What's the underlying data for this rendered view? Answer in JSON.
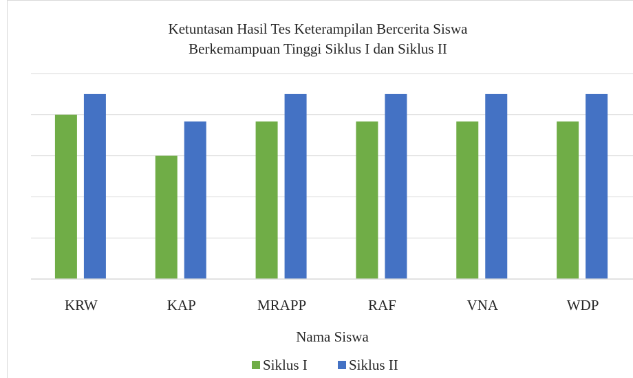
{
  "chart_data": {
    "type": "bar",
    "title": [
      "Ketuntasan  Hasil Tes Keterampilan  Bercerita  Siswa",
      "Berkemampuan  Tinggi Siklus I dan Siklus II"
    ],
    "x_label": "Nama Siswa",
    "categories": [
      "KRW",
      "KAP",
      "MRAPP",
      "RAF",
      "VNA",
      "WDP"
    ],
    "series": [
      {
        "name": "Siklus I",
        "color": "#70ad47",
        "values": [
          80,
          60,
          76.7,
          76.7,
          76.7,
          76.7
        ]
      },
      {
        "name": "Siklus II",
        "color": "#4472c4",
        "values": [
          90,
          76.7,
          90,
          90,
          90,
          90
        ]
      }
    ],
    "ylim": [
      0,
      100
    ],
    "yticks": [
      0,
      20,
      40,
      60,
      80,
      100
    ],
    "grid": true,
    "legend": "bottom"
  }
}
